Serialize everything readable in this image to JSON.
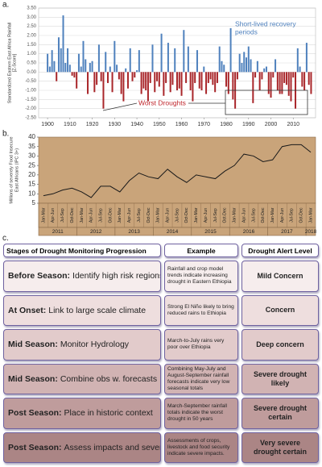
{
  "chart_data": [
    {
      "type": "bar",
      "panel": "a.",
      "y_label": [
        "Standardized Eastern East Africa Rainfall",
        "[Z-Score]"
      ],
      "annotations": [
        {
          "text": [
            "Short-lived recovery",
            "periods"
          ],
          "color": "#4f81bd"
        },
        {
          "text": [
            "Worst Droughts"
          ],
          "color": "#c0272d"
        }
      ],
      "positive_color": "#4f81bd",
      "negative_color": "#a9262a",
      "x": [
        1900,
        1901,
        1902,
        1903,
        1904,
        1905,
        1906,
        1907,
        1908,
        1909,
        1910,
        1911,
        1912,
        1913,
        1914,
        1915,
        1916,
        1917,
        1918,
        1919,
        1920,
        1921,
        1922,
        1923,
        1924,
        1925,
        1926,
        1927,
        1928,
        1929,
        1930,
        1931,
        1932,
        1933,
        1934,
        1935,
        1936,
        1937,
        1938,
        1939,
        1940,
        1941,
        1942,
        1943,
        1944,
        1945,
        1946,
        1947,
        1948,
        1949,
        1950,
        1951,
        1952,
        1953,
        1954,
        1955,
        1956,
        1957,
        1958,
        1959,
        1960,
        1961,
        1962,
        1963,
        1964,
        1965,
        1966,
        1967,
        1968,
        1969,
        1970,
        1971,
        1972,
        1973,
        1974,
        1975,
        1976,
        1977,
        1978,
        1979,
        1980,
        1981,
        1982,
        1983,
        1984,
        1985,
        1986,
        1987,
        1988,
        1989,
        1990,
        1991,
        1992,
        1993,
        1994,
        1995,
        1996,
        1997,
        1998,
        1999,
        2000,
        2001,
        2002,
        2003,
        2004,
        2005,
        2006,
        2007,
        2008,
        2009,
        2010,
        2011,
        2012,
        2013,
        2014,
        2015,
        2016,
        2017,
        2018
      ],
      "values": [
        1.0,
        0.3,
        1.2,
        0.6,
        -0.5,
        1.9,
        1.3,
        3.1,
        0.5,
        1.3,
        0.4,
        -0.2,
        -0.3,
        -0.9,
        1.0,
        0.3,
        1.7,
        0.7,
        -1.2,
        0.5,
        0.6,
        -1.1,
        -0.7,
        1.5,
        -0.5,
        -2.0,
        1.1,
        -0.6,
        0.3,
        -1.1,
        1.7,
        0.4,
        -0.4,
        -1.2,
        -1.6,
        0.2,
        -0.9,
        1.3,
        -0.5,
        -0.3,
        0.1,
        1.2,
        -1.2,
        -0.9,
        -1.0,
        -1.6,
        -0.6,
        1.5,
        -1.1,
        -0.5,
        -0.8,
        2.1,
        -1.3,
        -0.6,
        1.6,
        -1.1,
        -0.7,
        1.3,
        -1.0,
        -0.9,
        -1.3,
        2.3,
        -0.6,
        1.4,
        -1.0,
        -1.6,
        -0.6,
        1.2,
        -0.9,
        -1.0,
        0.3,
        -1.2,
        -0.6,
        -0.4,
        -0.7,
        -1.1,
        -0.6,
        1.4,
        0.6,
        0.4,
        -0.8,
        -1.2,
        2.4,
        -1.5,
        -2.0,
        -0.4,
        1.0,
        0.5,
        1.1,
        0.8,
        1.4,
        0.7,
        -1.7,
        -0.3,
        0.6,
        -1.0,
        -0.4,
        0.2,
        0.3,
        -1.2,
        -1.4,
        -0.3,
        0.7,
        -1.0,
        -1.2,
        -1.2,
        -0.6,
        -0.7,
        -1.3,
        -1.6,
        -0.3,
        -2.0,
        1.3,
        0.3,
        -0.8,
        -1.0,
        1.6,
        -0.7,
        -1.2
      ],
      "xlim": [
        1896,
        2020
      ],
      "xticks": [
        1900,
        1910,
        1920,
        1930,
        1940,
        1950,
        1960,
        1970,
        1980,
        1990,
        2000,
        2010
      ],
      "ylim": [
        -2.5,
        3.5
      ],
      "yticks": [
        {
          "value": 3.5,
          "label": "3.50"
        },
        {
          "value": 3,
          "label": "3.00"
        },
        {
          "value": 2.5,
          "label": "2.50"
        },
        {
          "value": 2,
          "label": "2.00"
        },
        {
          "value": 1.5,
          "label": "1.50"
        },
        {
          "value": 1,
          "label": "1.00"
        },
        {
          "value": 0.5,
          "label": "0.50"
        },
        {
          "value": 0,
          "label": "0.00"
        },
        {
          "value": -0.5,
          "label": "-0.50"
        },
        {
          "value": -1,
          "label": "-1.00"
        },
        {
          "value": -1.5,
          "label": "-1.50"
        },
        {
          "value": -2,
          "label": "-2.00"
        },
        {
          "value": -2.5,
          "label": "-2.50"
        }
      ],
      "grid": true
    },
    {
      "type": "line",
      "panel": "b.",
      "y_label": [
        "Millions of severely Food Insecure",
        "East Africans (IPC 3+)"
      ],
      "color": "#1a1a1a",
      "background": "#c9a47a",
      "categories": [
        "Jan-Mar",
        "Apr-Jun",
        "Jul-Sep",
        "Oct-Dec",
        "Jan-Mar",
        "Apr-Jun",
        "Jul-Sep",
        "Oct-Dec",
        "Jan-Mar",
        "Apr-Jun",
        "Jul-Sep",
        "Oct-Dec",
        "Jan-Mar",
        "Apr-Jun",
        "Jul-Sep",
        "Oct-Dec",
        "Jan-Mar",
        "Apr-Jun",
        "Jul-Sep",
        "Oct-Dec",
        "Jan-Mar",
        "Apr-Jun",
        "Jul-Sep",
        "Oct-Dec",
        "Jan-Mar",
        "Apr-Jun",
        "Jul-Sep",
        "Oct-Dec",
        "Jan-Mar"
      ],
      "years": [
        2011,
        2012,
        2013,
        2014,
        2015,
        2016,
        2017,
        2018
      ],
      "values": [
        9,
        10,
        12,
        13,
        11,
        8,
        14,
        14,
        11,
        17,
        21,
        19,
        18,
        23,
        19,
        16,
        20,
        19,
        18,
        22,
        25,
        31,
        30,
        27,
        28,
        35,
        36,
        36,
        32
      ],
      "ylim": [
        5,
        40
      ],
      "yticks": [
        5,
        10,
        15,
        20,
        25,
        30,
        35,
        40
      ],
      "grid": false
    }
  ],
  "table": {
    "panel": "c.",
    "header": [
      "Stages of Drought Monitoring Progression",
      "Example",
      "Drought Alert Level"
    ],
    "rows": [
      {
        "stage": "Before Season:",
        "task": "Identify high risk regions",
        "example": "Rainfall and crop model trends indicate increasing drought in Eastern Ethiopia",
        "level": "Mild Concern"
      },
      {
        "stage": "At Onset:",
        "task": "Link to large scale climate",
        "example": "Strong El Niño likely to bring reduced rains to Ethiopia",
        "level": "Concern"
      },
      {
        "stage": "Mid Season:",
        "task": "Monitor Hydrology",
        "example": "March-to-July rains very poor over Ethiopia",
        "level": "Deep concern"
      },
      {
        "stage": "Mid Season:",
        "task": "Combine obs w. forecasts",
        "example": "Combining May-July and August-September rainfall forecasts indicate very low seasonal totals",
        "level": "Severe drought likely"
      },
      {
        "stage": "Post Season:",
        "task": "Place in historic context",
        "example": "March-September rainfall totals indicate the worst drought in 50 years",
        "level": "Severe drought certain"
      },
      {
        "stage": "Post Season:",
        "task": "Assess impacts and severity",
        "example": "Assessments of crops, livestock and food security indicate severe impacts.",
        "level": "Very severe drought certain"
      }
    ],
    "row_colors": [
      "#f6eded",
      "#eedede",
      "#e2cbcb",
      "#d1b3b3",
      "#bf9c9c",
      "#ab8585"
    ]
  }
}
